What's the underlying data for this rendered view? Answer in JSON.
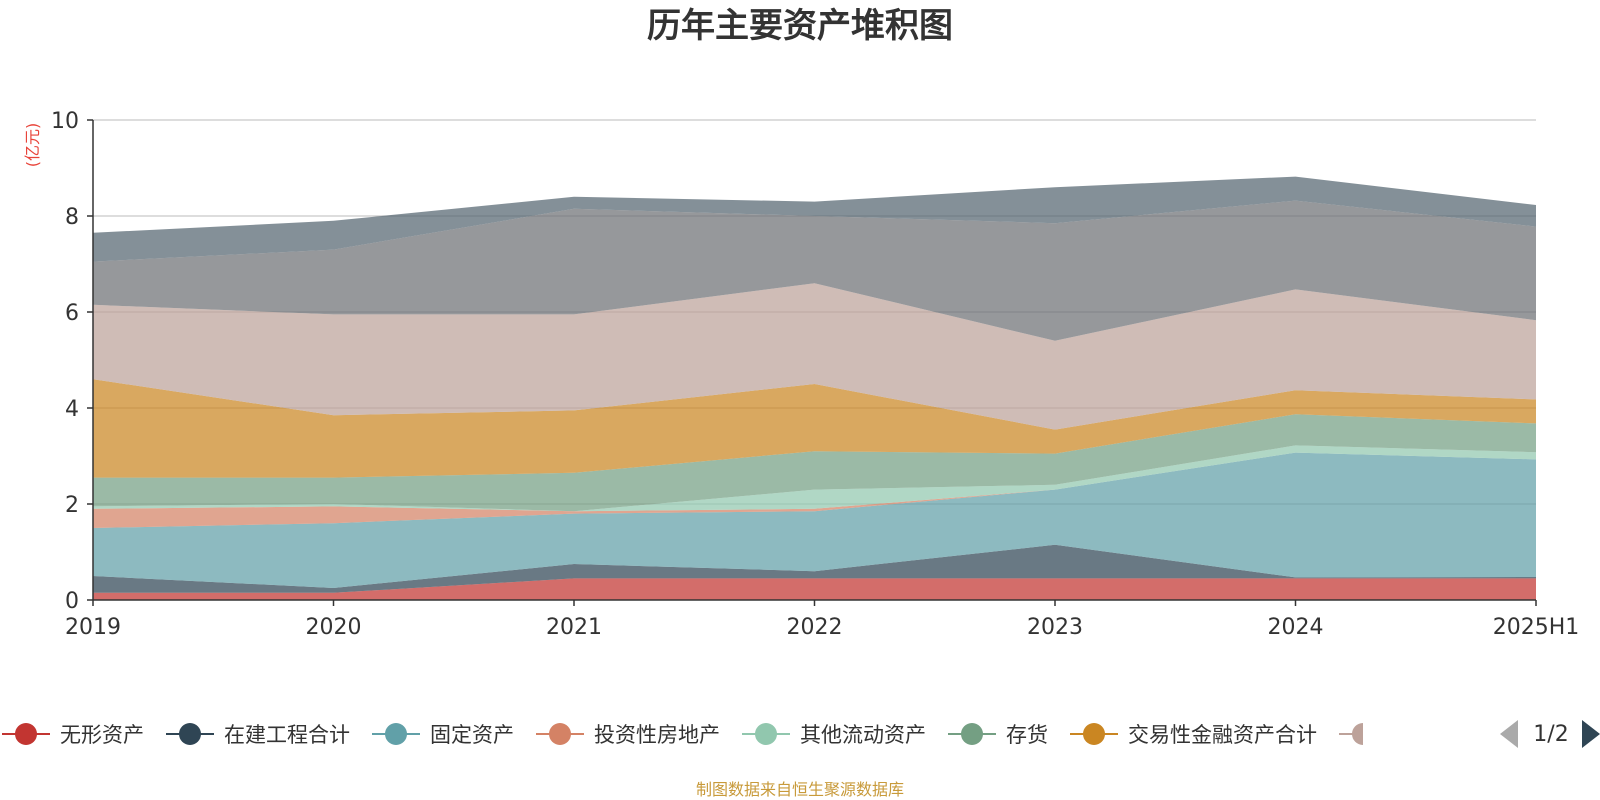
{
  "chart_data": {
    "type": "area",
    "stacked": true,
    "title": "历年主要资产堆积图",
    "ylabel": "(亿元)",
    "ylim": [
      0,
      10
    ],
    "yticks": [
      "0",
      "2",
      "4",
      "6",
      "8",
      "10"
    ],
    "categories": [
      "2019",
      "2020",
      "2021",
      "2022",
      "2023",
      "2024",
      "2025H1"
    ],
    "grid": true,
    "legend_position": "bottom",
    "series": [
      {
        "name": "无形资产",
        "color": "#c23531",
        "values": [
          0.15,
          0.15,
          0.45,
          0.45,
          0.45,
          0.45,
          0.45
        ]
      },
      {
        "name": "在建工程合计",
        "color": "#2f4554",
        "values": [
          0.35,
          0.1,
          0.3,
          0.15,
          0.7,
          0.02,
          0.03
        ]
      },
      {
        "name": "固定资产",
        "color": "#61a0a8",
        "values": [
          1.0,
          1.35,
          1.05,
          1.25,
          1.15,
          2.6,
          2.45
        ]
      },
      {
        "name": "投资性房地产",
        "color": "#d48265",
        "values": [
          0.4,
          0.35,
          0.05,
          0.05,
          0.0,
          0.0,
          0.0
        ]
      },
      {
        "name": "其他流动资产",
        "color": "#91c7ae",
        "values": [
          0.05,
          0.05,
          0.0,
          0.4,
          0.1,
          0.15,
          0.15
        ]
      },
      {
        "name": "存货",
        "color": "#749f83",
        "values": [
          0.6,
          0.55,
          0.8,
          0.8,
          0.65,
          0.65,
          0.6
        ]
      },
      {
        "name": "交易性金融资产合计",
        "color": "#ca8622",
        "values": [
          2.05,
          1.3,
          1.3,
          1.4,
          0.5,
          0.5,
          0.5
        ]
      },
      {
        "name": "",
        "color": "#bda29a",
        "values": [
          1.55,
          2.1,
          2.0,
          2.1,
          1.85,
          2.1,
          1.65
        ]
      },
      {
        "name": "",
        "color": "#6e7074",
        "values": [
          0.9,
          1.35,
          2.2,
          1.4,
          2.45,
          1.85,
          1.95
        ]
      },
      {
        "name": "",
        "color": "#546570",
        "values": [
          0.6,
          0.6,
          0.25,
          0.3,
          0.75,
          0.5,
          0.45
        ]
      }
    ]
  },
  "legend": {
    "items": [
      "无形资产",
      "在建工程合计",
      "固定资产",
      "投资性房地产",
      "其他流动资产",
      "存货",
      "交易性金融资产合计"
    ],
    "page": "1/2"
  },
  "source_note": "制图数据来自恒生聚源数据库"
}
